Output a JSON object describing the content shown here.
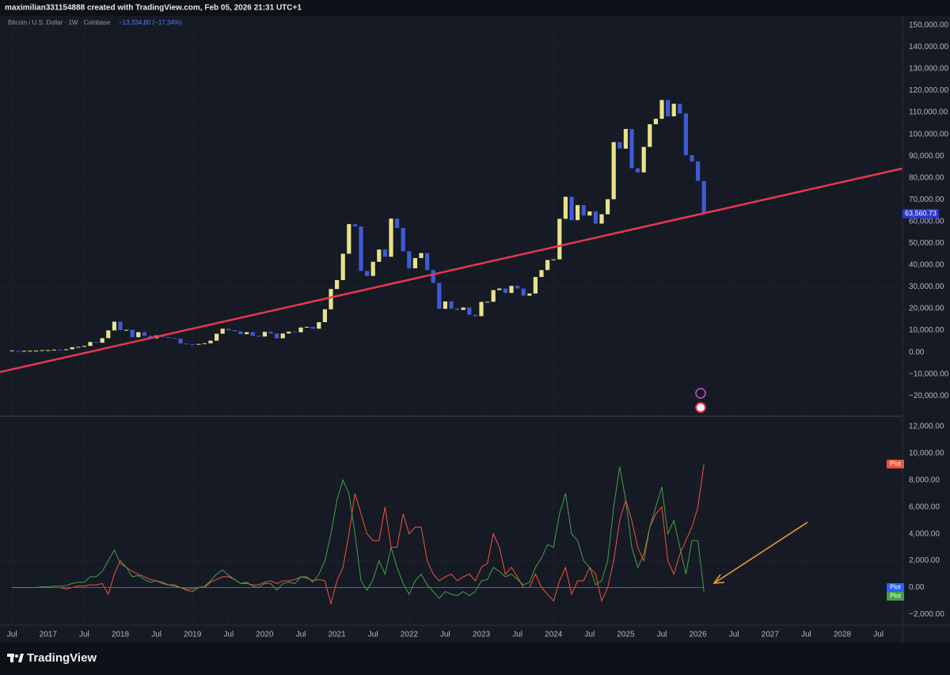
{
  "header": {
    "text": "maximilian331154888 created with TradingView.com, Feb 05, 2026 21:31 UTC+1"
  },
  "footer": {
    "brand": "TradingView"
  },
  "chart_data": [
    {
      "type": "candlestick",
      "title": "Bitcoin / U.S. Dollar · 1W · Coinbase",
      "subtitle": "−13,334.80 (−17.34%)",
      "x": [
        "2016-07",
        "2016-08",
        "2016-09",
        "2016-10",
        "2016-11",
        "2016-12",
        "2017-01",
        "2017-02",
        "2017-03",
        "2017-04",
        "2017-05",
        "2017-06",
        "2017-07",
        "2017-08",
        "2017-09",
        "2017-10",
        "2017-11",
        "2017-12",
        "2018-01",
        "2018-02",
        "2018-03",
        "2018-04",
        "2018-05",
        "2018-06",
        "2018-07",
        "2018-08",
        "2018-09",
        "2018-10",
        "2018-11",
        "2018-12",
        "2019-01",
        "2019-02",
        "2019-03",
        "2019-04",
        "2019-05",
        "2019-06",
        "2019-07",
        "2019-08",
        "2019-09",
        "2019-10",
        "2019-11",
        "2019-12",
        "2020-01",
        "2020-02",
        "2020-03",
        "2020-04",
        "2020-05",
        "2020-06",
        "2020-07",
        "2020-08",
        "2020-09",
        "2020-10",
        "2020-11",
        "2020-12",
        "2021-01",
        "2021-02",
        "2021-03",
        "2021-04",
        "2021-05",
        "2021-06",
        "2021-07",
        "2021-08",
        "2021-09",
        "2021-10",
        "2021-11",
        "2021-12",
        "2022-01",
        "2022-02",
        "2022-03",
        "2022-04",
        "2022-05",
        "2022-06",
        "2022-07",
        "2022-08",
        "2022-09",
        "2022-10",
        "2022-11",
        "2022-12",
        "2023-01",
        "2023-02",
        "2023-03",
        "2023-04",
        "2023-05",
        "2023-06",
        "2023-07",
        "2023-08",
        "2023-09",
        "2023-10",
        "2023-11",
        "2023-12",
        "2024-01",
        "2024-02",
        "2024-03",
        "2024-04",
        "2024-05",
        "2024-06",
        "2024-07",
        "2024-08",
        "2024-09",
        "2024-10",
        "2024-11",
        "2024-12",
        "2025-01",
        "2025-02",
        "2025-03",
        "2025-04",
        "2025-05",
        "2025-06",
        "2025-07",
        "2025-08",
        "2025-09",
        "2025-10",
        "2025-11",
        "2025-12",
        "2026-01",
        "2026-02"
      ],
      "values": [
        650,
        575,
        610,
        700,
        740,
        960,
        970,
        1190,
        1080,
        1350,
        2300,
        2480,
        2870,
        4700,
        4340,
        6450,
        10000,
        14000,
        10200,
        10300,
        6900,
        9200,
        7500,
        6400,
        7700,
        7000,
        6600,
        6300,
        4000,
        3700,
        3450,
        3800,
        4100,
        5300,
        8500,
        10800,
        10100,
        9600,
        8300,
        9200,
        7500,
        7200,
        9350,
        8600,
        6400,
        8600,
        9450,
        9150,
        11350,
        11650,
        10800,
        13800,
        19700,
        29000,
        33100,
        45200,
        58800,
        57700,
        37300,
        35000,
        41500,
        47100,
        43800,
        61300,
        57000,
        46300,
        38500,
        43200,
        45500,
        37700,
        31800,
        19900,
        23300,
        20050,
        19400,
        20500,
        17200,
        16550,
        23100,
        23150,
        28500,
        29250,
        27200,
        30450,
        29200,
        25950,
        26950,
        34500,
        37700,
        42300,
        42600,
        61200,
        71300,
        60600,
        67500,
        62700,
        64600,
        59000,
        63300,
        70200,
        96400,
        93400,
        102400,
        84400,
        82500,
        94200,
        104600,
        107100,
        115700,
        108200,
        114000,
        109500,
        90400,
        87500,
        78600,
        63560.73
      ],
      "last_value_label": "63,560.73",
      "rising_color": "#e8e28a",
      "falling_color": "#3d5bd6",
      "last_label_color": "#2b36c9",
      "trendline": {
        "x": [
          "2016-05",
          "2028-11"
        ],
        "values": [
          -9100,
          84300
        ],
        "color": "#e8384f"
      },
      "xlim": [
        "2016-05",
        "2028-11"
      ],
      "xticks": [
        {
          "value": "2016-07",
          "label": "Jul"
        },
        {
          "value": "2017-01",
          "label": "2017"
        },
        {
          "value": "2017-07",
          "label": "Jul"
        },
        {
          "value": "2018-01",
          "label": "2018"
        },
        {
          "value": "2018-07",
          "label": "Jul"
        },
        {
          "value": "2019-01",
          "label": "2019"
        },
        {
          "value": "2019-07",
          "label": "Jul"
        },
        {
          "value": "2020-01",
          "label": "2020"
        },
        {
          "value": "2020-07",
          "label": "Jul"
        },
        {
          "value": "2021-01",
          "label": "2021"
        },
        {
          "value": "2021-07",
          "label": "Jul"
        },
        {
          "value": "2022-01",
          "label": "2022"
        },
        {
          "value": "2022-07",
          "label": "Jul"
        },
        {
          "value": "2023-01",
          "label": "2023"
        },
        {
          "value": "2023-07",
          "label": "Jul"
        },
        {
          "value": "2024-01",
          "label": "2024"
        },
        {
          "value": "2024-07",
          "label": "Jul"
        },
        {
          "value": "2025-01",
          "label": "2025"
        },
        {
          "value": "2025-07",
          "label": "Jul"
        },
        {
          "value": "2026-01",
          "label": "2026"
        },
        {
          "value": "2026-07",
          "label": "Jul"
        },
        {
          "value": "2027-01",
          "label": "2027"
        },
        {
          "value": "2027-07",
          "label": "Jul"
        },
        {
          "value": "2028-01",
          "label": "2028"
        },
        {
          "value": "2028-07",
          "label": "Jul"
        }
      ],
      "ylim": [
        -29000,
        153600
      ],
      "yticks": [
        {
          "value": -20000,
          "label": "−20,000.00"
        },
        {
          "value": -10000,
          "label": "−10,000.00"
        },
        {
          "value": 0,
          "label": "0.00"
        },
        {
          "value": 10000,
          "label": "10,000.00"
        },
        {
          "value": 20000,
          "label": "20,000.00"
        },
        {
          "value": 30000,
          "label": "30,000.00"
        },
        {
          "value": 40000,
          "label": "40,000.00"
        },
        {
          "value": 50000,
          "label": "50,000.00"
        },
        {
          "value": 60000,
          "label": "60,000.00"
        },
        {
          "value": 70000,
          "label": "70,000.00"
        },
        {
          "value": 80000,
          "label": "80,000.00"
        },
        {
          "value": 90000,
          "label": "90,000.00"
        },
        {
          "value": 100000,
          "label": "100,000.00"
        },
        {
          "value": 110000,
          "label": "110,000.00"
        },
        {
          "value": 120000,
          "label": "120,000.00"
        },
        {
          "value": 130000,
          "label": "130,000.00"
        },
        {
          "value": 140000,
          "label": "140,000.00"
        },
        {
          "value": 150000,
          "label": "150,000.00"
        }
      ],
      "grid": true
    },
    {
      "type": "line",
      "x": [
        "2016-07",
        "2016-08",
        "2016-09",
        "2016-10",
        "2016-11",
        "2016-12",
        "2017-01",
        "2017-02",
        "2017-03",
        "2017-04",
        "2017-05",
        "2017-06",
        "2017-07",
        "2017-08",
        "2017-09",
        "2017-10",
        "2017-11",
        "2017-12",
        "2018-01",
        "2018-02",
        "2018-03",
        "2018-04",
        "2018-05",
        "2018-06",
        "2018-07",
        "2018-08",
        "2018-09",
        "2018-10",
        "2018-11",
        "2018-12",
        "2019-01",
        "2019-02",
        "2019-03",
        "2019-04",
        "2019-05",
        "2019-06",
        "2019-07",
        "2019-08",
        "2019-09",
        "2019-10",
        "2019-11",
        "2019-12",
        "2020-01",
        "2020-02",
        "2020-03",
        "2020-04",
        "2020-05",
        "2020-06",
        "2020-07",
        "2020-08",
        "2020-09",
        "2020-10",
        "2020-11",
        "2020-12",
        "2021-01",
        "2021-02",
        "2021-03",
        "2021-04",
        "2021-05",
        "2021-06",
        "2021-07",
        "2021-08",
        "2021-09",
        "2021-10",
        "2021-11",
        "2021-12",
        "2022-01",
        "2022-02",
        "2022-03",
        "2022-04",
        "2022-05",
        "2022-06",
        "2022-07",
        "2022-08",
        "2022-09",
        "2022-10",
        "2022-11",
        "2022-12",
        "2023-01",
        "2023-02",
        "2023-03",
        "2023-04",
        "2023-05",
        "2023-06",
        "2023-07",
        "2023-08",
        "2023-09",
        "2023-10",
        "2023-11",
        "2023-12",
        "2024-01",
        "2024-02",
        "2024-03",
        "2024-04",
        "2024-05",
        "2024-06",
        "2024-07",
        "2024-08",
        "2024-09",
        "2024-10",
        "2024-11",
        "2024-12",
        "2025-01",
        "2025-02",
        "2025-03",
        "2025-04",
        "2025-05",
        "2025-06",
        "2025-07",
        "2025-08",
        "2025-09",
        "2025-10",
        "2025-11",
        "2025-12",
        "2026-01",
        "2026-02"
      ],
      "series": [
        {
          "name": "Plot",
          "color": "#f0553a",
          "values": [
            0,
            0,
            0,
            0,
            0,
            0,
            0,
            0,
            0,
            -100,
            0,
            100,
            100,
            200,
            200,
            300,
            -500,
            1000,
            2000,
            1500,
            1200,
            1000,
            800,
            600,
            500,
            400,
            200,
            200,
            0,
            -200,
            -300,
            0,
            0,
            400,
            600,
            800,
            800,
            600,
            300,
            300,
            200,
            200,
            400,
            500,
            300,
            500,
            500,
            600,
            800,
            700,
            500,
            600,
            500,
            -1200,
            500,
            1500,
            4000,
            7000,
            5500,
            4000,
            3500,
            3500,
            6000,
            3000,
            3000,
            5500,
            4000,
            4500,
            4500,
            2000,
            1000,
            500,
            800,
            1000,
            500,
            800,
            1000,
            500,
            1500,
            1800,
            4000,
            3000,
            1000,
            1500,
            800,
            0,
            0,
            1000,
            0,
            -500,
            -1000,
            500,
            1500,
            -500,
            500,
            500,
            1500,
            1000,
            -1000,
            0,
            2000,
            5000,
            6500,
            5000,
            3000,
            2000,
            4500,
            5500,
            6000,
            2000,
            1000,
            2500,
            3500,
            4500,
            6000,
            9200
          ]
        },
        {
          "name": "Plot",
          "color": "#2962ff",
          "values": [
            0,
            0,
            0,
            0,
            0,
            0,
            0,
            0,
            0,
            0,
            0,
            0,
            0,
            0,
            0,
            0,
            0,
            0,
            0,
            0,
            0,
            0,
            0,
            0,
            0,
            0,
            0,
            0,
            0,
            0,
            0,
            0,
            0,
            0,
            0,
            0,
            0,
            0,
            0,
            0,
            0,
            0,
            0,
            0,
            0,
            0,
            0,
            0,
            0,
            0,
            0,
            0,
            0,
            0,
            0,
            0,
            0,
            0,
            0,
            0,
            0,
            0,
            0,
            0,
            0,
            0,
            0,
            0,
            0,
            0,
            0,
            0,
            0,
            0,
            0,
            0,
            0,
            0,
            0,
            0,
            0,
            0,
            0,
            0,
            0,
            0,
            0,
            0,
            0,
            0,
            0,
            0,
            0,
            0,
            0,
            0,
            0,
            0,
            0,
            0,
            0,
            0,
            0,
            0,
            0,
            0,
            0,
            0,
            0,
            0,
            0,
            0,
            0,
            0,
            0,
            0
          ]
        },
        {
          "name": "Plot",
          "color": "#43a047",
          "values": [
            0,
            0,
            0,
            0,
            0,
            50,
            50,
            100,
            100,
            150,
            300,
            400,
            400,
            800,
            800,
            1200,
            2000,
            2800,
            1800,
            1500,
            800,
            900,
            600,
            400,
            500,
            300,
            200,
            100,
            0,
            -100,
            -100,
            0,
            100,
            500,
            1000,
            1300,
            900,
            600,
            300,
            400,
            100,
            0,
            300,
            300,
            -200,
            300,
            400,
            300,
            800,
            800,
            400,
            1000,
            2000,
            4000,
            6500,
            8000,
            7000,
            4000,
            500,
            -200,
            600,
            2000,
            1000,
            3000,
            1500,
            300,
            -500,
            500,
            1000,
            200,
            -300,
            -800,
            -300,
            -500,
            -600,
            -300,
            -600,
            -300,
            500,
            600,
            1500,
            1200,
            800,
            1000,
            600,
            200,
            400,
            1500,
            2200,
            3200,
            3000,
            5500,
            7000,
            4000,
            3500,
            2000,
            1500,
            200,
            500,
            2000,
            6000,
            9000,
            6500,
            3000,
            1500,
            2500,
            4500,
            6000,
            7500,
            4000,
            5000,
            3000,
            1000,
            3500,
            3500,
            -300
          ]
        }
      ],
      "ylim": [
        -2800,
        12640
      ],
      "yticks": [
        {
          "value": -2000,
          "label": "−2,000.00"
        },
        {
          "value": 0,
          "label": "0.00"
        },
        {
          "value": 2000,
          "label": "2,000.00"
        },
        {
          "value": 4000,
          "label": "4,000.00"
        },
        {
          "value": 6000,
          "label": "6,000.00"
        },
        {
          "value": 8000,
          "label": "8,000.00"
        },
        {
          "value": 10000,
          "label": "10,000.00"
        },
        {
          "value": 12000,
          "label": "12,000.00"
        }
      ],
      "grid": true
    }
  ]
}
